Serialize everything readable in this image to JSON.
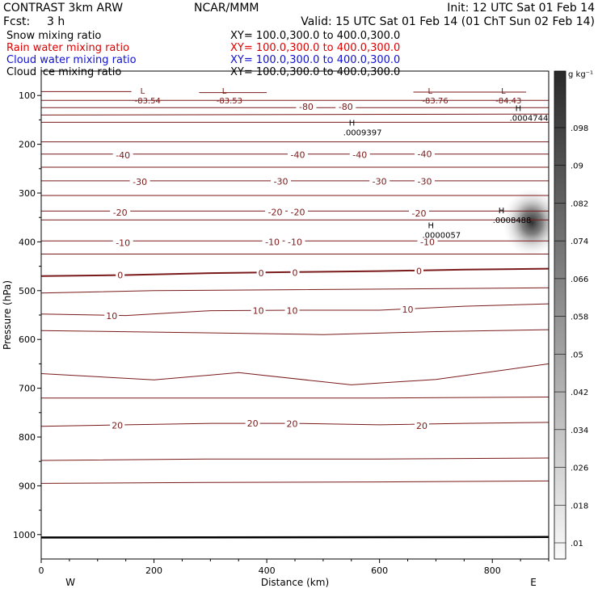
{
  "header": {
    "title_left": "CONTRAST  3km ARW",
    "center": "NCAR/MMM",
    "init": "Init: 12 UTC Sat 01 Feb 14",
    "fcst_label": "Fcst:",
    "fcst_value": "3 h",
    "valid": "Valid: 15 UTC Sat 01 Feb 14 (01 ChT Sun 02 Feb 14)"
  },
  "legend_lines": [
    {
      "name": "Snow mixing ratio",
      "xy": "XY= 100.0,300.0 to 400.0,300.0",
      "color": "#000000"
    },
    {
      "name": "Rain water mixing ratio",
      "xy": "XY= 100.0,300.0 to 400.0,300.0",
      "color": "#e00000"
    },
    {
      "name": "Cloud water mixing ratio",
      "xy": "XY= 100.0,300.0 to 400.0,300.0",
      "color": "#1010d0"
    },
    {
      "name": "Cloud ice mixing ratio",
      "xy": "XY= 100.0,300.0 to 400.0,300.0",
      "color": "#000000"
    }
  ],
  "colors": {
    "contour": "#7a1a1a",
    "shade": "#333333"
  },
  "chart_data": {
    "type": "heatmap",
    "xlabel": "Distance (km)",
    "ylabel": "Pressure (hPa)",
    "xlim": [
      0,
      900
    ],
    "ylim": [
      1050,
      50
    ],
    "x_ticks": [
      0,
      200,
      400,
      600,
      800
    ],
    "y_ticks": [
      100,
      200,
      300,
      400,
      500,
      600,
      700,
      800,
      900,
      1000
    ],
    "x_end_labels": {
      "left": "W",
      "right": "E"
    },
    "colorbar": {
      "unit": "g kg⁻¹",
      "levels": [
        ".01",
        ".018",
        ".026",
        ".034",
        ".042",
        ".05",
        ".058",
        ".066",
        ".074",
        ".082",
        ".09",
        ".098"
      ]
    },
    "shaded_feature": {
      "x": 870,
      "p": 360,
      "max": 0.0008488
    },
    "contours": [
      {
        "level": "-80",
        "points": [
          [
            0,
            125
          ],
          [
            150,
            125
          ],
          [
            300,
            125
          ],
          [
            450,
            125
          ],
          [
            600,
            125
          ],
          [
            750,
            125
          ],
          [
            900,
            125
          ]
        ],
        "labels": [
          [
            470,
            123
          ],
          [
            540,
            123
          ]
        ]
      },
      {
        "level": "-40",
        "points": [
          [
            0,
            220
          ],
          [
            300,
            220
          ],
          [
            600,
            220
          ],
          [
            900,
            220
          ]
        ],
        "labels": [
          [
            145,
            222
          ],
          [
            455,
            221
          ],
          [
            565,
            221
          ],
          [
            680,
            220
          ]
        ]
      },
      {
        "level": "-30",
        "points": [
          [
            0,
            275
          ],
          [
            300,
            275
          ],
          [
            600,
            275
          ],
          [
            900,
            275
          ]
        ],
        "labels": [
          [
            175,
            277
          ],
          [
            425,
            276
          ],
          [
            600,
            276
          ],
          [
            680,
            276
          ]
        ]
      },
      {
        "level": "-20",
        "points": [
          [
            0,
            337
          ],
          [
            300,
            337
          ],
          [
            600,
            337
          ],
          [
            900,
            337
          ]
        ],
        "labels": [
          [
            140,
            340
          ],
          [
            415,
            339
          ],
          [
            455,
            339
          ],
          [
            670,
            341
          ]
        ]
      },
      {
        "level": "-10",
        "points": [
          [
            0,
            398
          ],
          [
            300,
            398
          ],
          [
            600,
            398
          ],
          [
            900,
            398
          ]
        ],
        "labels": [
          [
            145,
            402
          ],
          [
            410,
            400
          ],
          [
            450,
            400
          ],
          [
            685,
            400
          ]
        ]
      },
      {
        "level": "0",
        "points": [
          [
            0,
            470
          ],
          [
            150,
            468
          ],
          [
            300,
            464
          ],
          [
            450,
            462
          ],
          [
            600,
            460
          ],
          [
            750,
            457
          ],
          [
            900,
            455
          ]
        ],
        "labels": [
          [
            140,
            468
          ],
          [
            390,
            464
          ],
          [
            450,
            463
          ],
          [
            670,
            460
          ]
        ]
      },
      {
        "level": "10",
        "points": [
          [
            0,
            548
          ],
          [
            150,
            551
          ],
          [
            300,
            541
          ],
          [
            450,
            540
          ],
          [
            600,
            540
          ],
          [
            750,
            532
          ],
          [
            900,
            527
          ]
        ],
        "labels": [
          [
            125,
            552
          ],
          [
            385,
            541
          ],
          [
            445,
            541
          ],
          [
            650,
            538
          ]
        ]
      },
      {
        "level": "20",
        "points": [
          [
            0,
            778
          ],
          [
            150,
            775
          ],
          [
            300,
            772
          ],
          [
            450,
            772
          ],
          [
            600,
            775
          ],
          [
            750,
            772
          ],
          [
            900,
            770
          ]
        ],
        "labels": [
          [
            135,
            776
          ],
          [
            375,
            772
          ],
          [
            445,
            773
          ],
          [
            675,
            777
          ]
        ]
      }
    ],
    "extra_lines": [
      {
        "points": [
          [
            0,
            110
          ],
          [
            900,
            110
          ]
        ]
      },
      {
        "points": [
          [
            0,
            140
          ],
          [
            900,
            138
          ]
        ]
      },
      {
        "points": [
          [
            0,
            155
          ],
          [
            900,
            155
          ]
        ]
      },
      {
        "points": [
          [
            0,
            195
          ],
          [
            900,
            195
          ]
        ]
      },
      {
        "points": [
          [
            0,
            247
          ],
          [
            900,
            247
          ]
        ]
      },
      {
        "points": [
          [
            0,
            305
          ],
          [
            900,
            305
          ]
        ]
      },
      {
        "points": [
          [
            0,
            355
          ],
          [
            900,
            355
          ]
        ]
      },
      {
        "points": [
          [
            0,
            425
          ],
          [
            900,
            425
          ]
        ]
      },
      {
        "points": [
          [
            0,
            505
          ],
          [
            200,
            500
          ],
          [
            450,
            498
          ],
          [
            700,
            496
          ],
          [
            900,
            494
          ]
        ]
      },
      {
        "points": [
          [
            0,
            582
          ],
          [
            200,
            585
          ],
          [
            500,
            590
          ],
          [
            700,
            584
          ],
          [
            900,
            580
          ]
        ]
      },
      {
        "points": [
          [
            0,
            670
          ],
          [
            200,
            683
          ],
          [
            350,
            668
          ],
          [
            550,
            693
          ],
          [
            700,
            682
          ],
          [
            900,
            650
          ]
        ]
      },
      {
        "points": [
          [
            0,
            720
          ],
          [
            200,
            720
          ],
          [
            600,
            720
          ],
          [
            900,
            718
          ]
        ]
      },
      {
        "points": [
          [
            0,
            848
          ],
          [
            300,
            845
          ],
          [
            600,
            845
          ],
          [
            900,
            843
          ]
        ]
      },
      {
        "points": [
          [
            0,
            895
          ],
          [
            300,
            893
          ],
          [
            600,
            892
          ],
          [
            900,
            890
          ]
        ]
      },
      {
        "points": [
          [
            0,
            92
          ],
          [
            160,
            92
          ]
        ]
      },
      {
        "points": [
          [
            280,
            94
          ],
          [
            400,
            94
          ]
        ]
      },
      {
        "points": [
          [
            660,
            93
          ],
          [
            860,
            93
          ]
        ]
      }
    ],
    "surface_line": {
      "points": [
        [
          0,
          1006
        ],
        [
          900,
          1005
        ]
      ]
    },
    "extremes": [
      {
        "type": "L",
        "value": "-83.54",
        "x": 180,
        "p": 100
      },
      {
        "type": "L",
        "value": "-83.53",
        "x": 325,
        "p": 100
      },
      {
        "type": "L",
        "value": "-83.76",
        "x": 690,
        "p": 100
      },
      {
        "type": "L",
        "value": "-84.43",
        "x": 820,
        "p": 100
      },
      {
        "type": "H",
        "value": ".0009397",
        "x": 550,
        "p": 165
      },
      {
        "type": "H",
        "value": ".0004744",
        "x": 845,
        "p": 135
      },
      {
        "type": "H",
        "value": ".0008488",
        "x": 815,
        "p": 345
      },
      {
        "type": "H",
        "value": ".0000057",
        "x": 690,
        "p": 375
      }
    ]
  }
}
